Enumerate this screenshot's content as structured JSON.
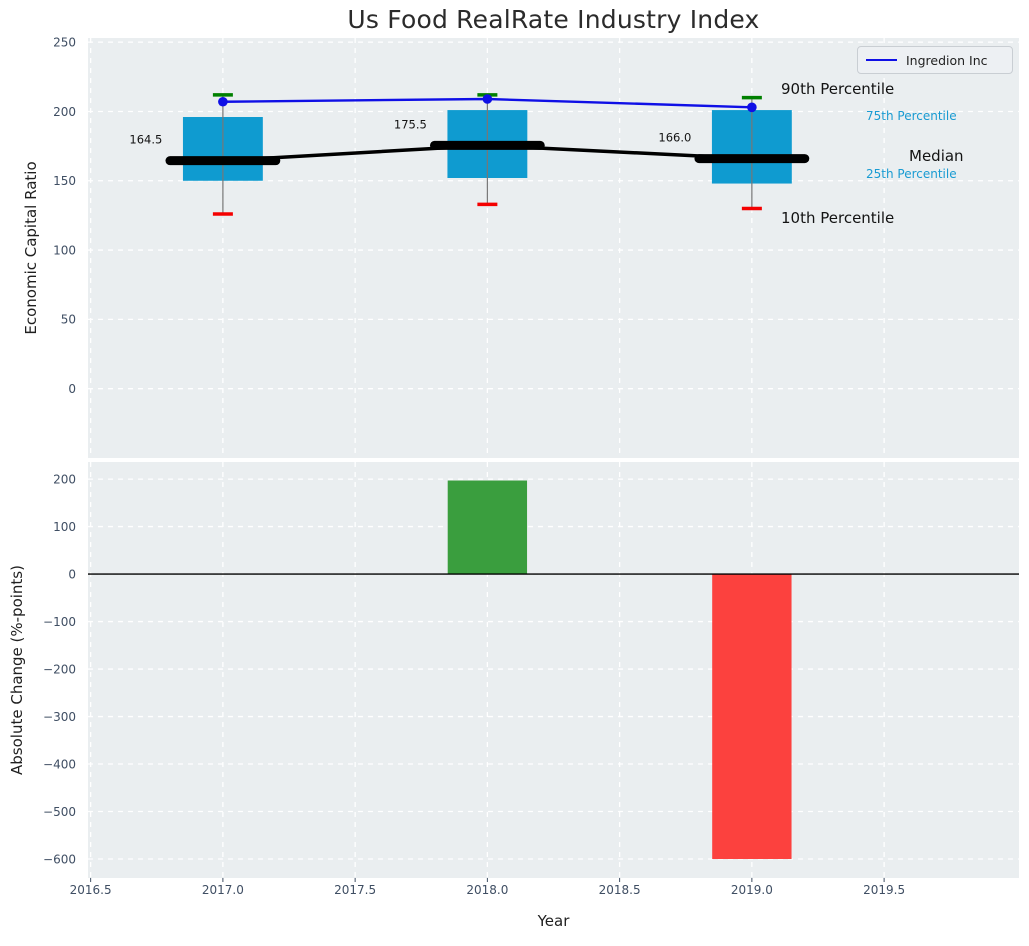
{
  "title": "Us Food RealRate Industry Index",
  "legend": {
    "label": "Ingredion Inc"
  },
  "annotations": {
    "p90": "90th Percentile",
    "p75": "75th Percentile",
    "median": "Median",
    "p25": "25th Percentile",
    "p10": "10th Percentile"
  },
  "colors": {
    "plot_bg": "#eaeef0",
    "grid": "#ffffff",
    "box_fill": "#0f9bd0",
    "whisker": "#777777",
    "cap_top": "#008000",
    "cap_bottom": "#f40000",
    "median_line": "#000000",
    "company_line": "#0f0fe6",
    "bar_positive": "#3a9e3e",
    "bar_negative": "#fc413e",
    "tick_text": "#3f4e63",
    "annotation_text": "#131313",
    "annotation_cyan": "#199bd2",
    "zero_line": "#000000"
  },
  "chart_data": [
    {
      "type": "box",
      "title": "Us Food RealRate Industry Index",
      "ylabel": "Economic Capital Ratio",
      "xlim": [
        2016.49,
        2020.01
      ],
      "ylim": [
        -50,
        253
      ],
      "yticks": [
        250,
        200,
        150,
        100,
        50,
        0
      ],
      "xticks": [
        2016.5,
        2017.0,
        2017.5,
        2018.0,
        2018.5,
        2019.0,
        2019.5
      ],
      "grid": true,
      "legend_position": "upper right",
      "boxes": [
        {
          "year": 2017,
          "p10": 126,
          "p25": 150,
          "median": 164.5,
          "p75": 196,
          "p90": 212,
          "label": "164.5"
        },
        {
          "year": 2018,
          "p10": 133,
          "p25": 152,
          "median": 175.5,
          "p75": 201,
          "p90": 212,
          "label": "175.5"
        },
        {
          "year": 2019,
          "p10": 130,
          "p25": 148,
          "median": 166.0,
          "p75": 201,
          "p90": 210,
          "label": "166.0"
        }
      ],
      "series": [
        {
          "name": "Ingredion Inc",
          "x": [
            2017,
            2018,
            2019
          ],
          "values": [
            207,
            209,
            203
          ]
        }
      ],
      "box_half_width_years": 0.151,
      "median_bar_half_width_years": 0.2
    },
    {
      "type": "bar",
      "ylabel": "Absolute Change (%-points)",
      "xlabel": "Year",
      "x": [
        2018,
        2019
      ],
      "values": [
        197,
        -600
      ],
      "bar_width_years": 0.3,
      "yticks": [
        200,
        100,
        0,
        -100,
        -200,
        -300,
        -400,
        -500,
        -600
      ],
      "xticks": [
        2016.5,
        2017.0,
        2017.5,
        2018.0,
        2018.5,
        2019.0,
        2019.5
      ],
      "xlim": [
        2016.49,
        2020.01
      ],
      "ylim": [
        -640,
        236
      ],
      "grid": true,
      "zero_line": true
    }
  ]
}
